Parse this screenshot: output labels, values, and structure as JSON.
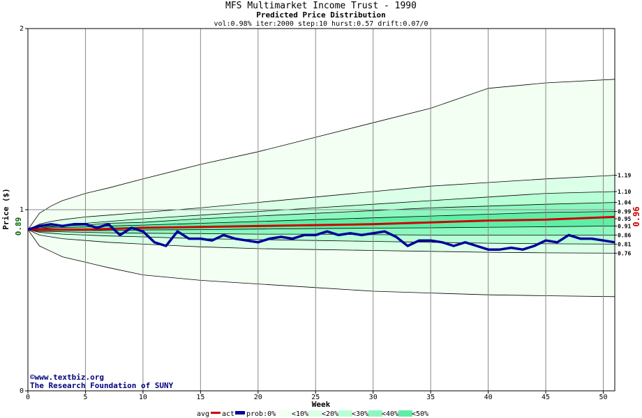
{
  "chart_data": {
    "type": "line",
    "title": "MFS Multimarket Income Trust - 1990",
    "subtitle": "Predicted Price Distribution",
    "params": "vol:0.98% iter:2000 step:10 hurst:0.57 drift:0.07/0",
    "xlabel": "Week",
    "ylabel": "Price ($)",
    "xlim": [
      0,
      51
    ],
    "ylim": [
      0,
      2
    ],
    "x_ticks": [
      "0",
      "5",
      "10",
      "15",
      "20",
      "25",
      "30",
      "35",
      "40",
      "45",
      "50"
    ],
    "y_ticks": [
      "0",
      "1",
      "2"
    ],
    "start_price": "0.89",
    "end_avg_label": "0.96",
    "right_labels": [
      "1.19",
      "1.10",
      "1.04",
      "0.99",
      "0.95",
      "0.91",
      "0.86",
      "0.81",
      "0.76"
    ],
    "band_weeks": [
      0,
      1,
      2,
      3,
      5,
      7,
      10,
      15,
      20,
      25,
      30,
      35,
      40,
      45,
      51
    ],
    "bands_upper": [
      [
        0.89,
        0.98,
        1.02,
        1.05,
        1.09,
        1.12,
        1.17,
        1.25,
        1.32,
        1.4,
        1.48,
        1.56,
        1.67,
        1.7,
        1.72
      ],
      [
        0.89,
        0.92,
        0.935,
        0.945,
        0.96,
        0.97,
        0.985,
        1.01,
        1.04,
        1.07,
        1.1,
        1.13,
        1.15,
        1.17,
        1.19
      ],
      [
        0.89,
        0.905,
        0.91,
        0.915,
        0.925,
        0.935,
        0.95,
        0.97,
        0.99,
        1.01,
        1.03,
        1.05,
        1.07,
        1.09,
        1.1
      ],
      [
        0.89,
        0.9,
        0.905,
        0.91,
        0.915,
        0.925,
        0.93,
        0.95,
        0.965,
        0.98,
        0.995,
        1.01,
        1.02,
        1.03,
        1.04
      ],
      [
        0.89,
        0.895,
        0.9,
        0.902,
        0.905,
        0.91,
        0.915,
        0.925,
        0.935,
        0.945,
        0.955,
        0.965,
        0.975,
        0.985,
        0.99
      ]
    ],
    "bands_lower": [
      [
        0.89,
        0.8,
        0.77,
        0.74,
        0.71,
        0.68,
        0.64,
        0.61,
        0.59,
        0.57,
        0.55,
        0.54,
        0.53,
        0.525,
        0.52
      ],
      [
        0.89,
        0.86,
        0.85,
        0.84,
        0.83,
        0.82,
        0.81,
        0.795,
        0.785,
        0.78,
        0.775,
        0.77,
        0.765,
        0.762,
        0.76
      ],
      [
        0.89,
        0.875,
        0.87,
        0.865,
        0.86,
        0.855,
        0.85,
        0.84,
        0.835,
        0.83,
        0.825,
        0.82,
        0.815,
        0.812,
        0.81
      ],
      [
        0.89,
        0.88,
        0.88,
        0.878,
        0.875,
        0.872,
        0.87,
        0.868,
        0.865,
        0.865,
        0.862,
        0.86,
        0.86,
        0.86,
        0.86
      ],
      [
        0.89,
        0.885,
        0.885,
        0.885,
        0.885,
        0.885,
        0.888,
        0.89,
        0.893,
        0.896,
        0.898,
        0.9,
        0.903,
        0.906,
        0.91
      ]
    ],
    "series": [
      {
        "name": "avg",
        "color": "#cc0000",
        "x": [
          0,
          5,
          10,
          15,
          20,
          25,
          30,
          35,
          40,
          45,
          51
        ],
        "values": [
          0.89,
          0.89,
          0.9,
          0.905,
          0.91,
          0.915,
          0.92,
          0.93,
          0.94,
          0.945,
          0.96
        ]
      },
      {
        "name": "act",
        "color": "#000099",
        "x": [
          0,
          1,
          2,
          3,
          4,
          5,
          6,
          7,
          8,
          9,
          10,
          11,
          12,
          13,
          14,
          15,
          16,
          17,
          18,
          19,
          20,
          21,
          22,
          23,
          24,
          25,
          26,
          27,
          28,
          29,
          30,
          31,
          32,
          33,
          34,
          35,
          36,
          37,
          38,
          39,
          40,
          41,
          42,
          43,
          44,
          45,
          46,
          47,
          48,
          49,
          50,
          51
        ],
        "values": [
          0.89,
          0.91,
          0.92,
          0.91,
          0.92,
          0.92,
          0.9,
          0.92,
          0.86,
          0.9,
          0.88,
          0.82,
          0.8,
          0.88,
          0.84,
          0.84,
          0.83,
          0.86,
          0.84,
          0.83,
          0.82,
          0.84,
          0.85,
          0.84,
          0.86,
          0.86,
          0.88,
          0.86,
          0.87,
          0.86,
          0.87,
          0.88,
          0.85,
          0.8,
          0.83,
          0.83,
          0.82,
          0.8,
          0.82,
          0.8,
          0.78,
          0.78,
          0.79,
          0.78,
          0.8,
          0.83,
          0.82,
          0.86,
          0.84,
          0.84,
          0.83,
          0.82
        ]
      }
    ],
    "legend": {
      "avg": "avg",
      "act": "act",
      "prob": "prob:0%",
      "items": [
        {
          "label": "<10%",
          "color": "#f2fff2"
        },
        {
          "label": "<20%",
          "color": "#dcffe8"
        },
        {
          "label": "<30%",
          "color": "#b8ffd6"
        },
        {
          "label": "<40%",
          "color": "#8cf7bf"
        },
        {
          "label": "<50%",
          "color": "#5eeea6"
        }
      ]
    },
    "watermark": [
      "©www.textbiz.org",
      "The Research Foundation of SUNY"
    ],
    "grid": true
  }
}
